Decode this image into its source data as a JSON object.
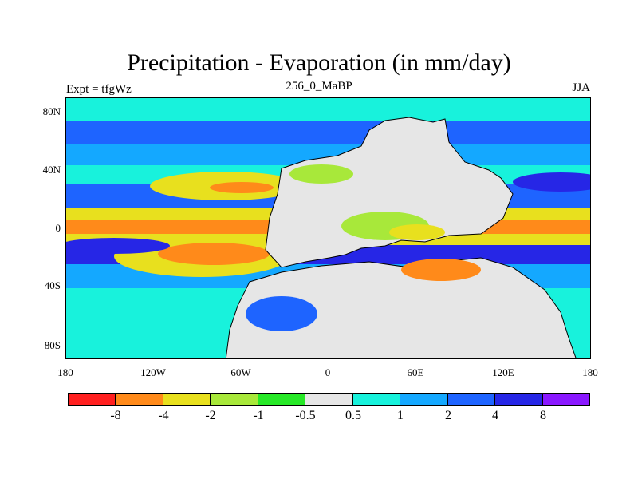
{
  "chart_data": {
    "type": "heatmap",
    "title": "Precipitation - Evaporation (in mm/day)",
    "subtitle": "256_0_MaBP",
    "left_label": "Expt = tfgWz",
    "right_label": "JJA",
    "x_ticks": [
      "180",
      "120W",
      "60W",
      "0",
      "60E",
      "120E",
      "180"
    ],
    "x_tick_values": [
      -180,
      -120,
      -60,
      0,
      60,
      120,
      180
    ],
    "y_ticks": [
      "80N",
      "40N",
      "0",
      "40S",
      "80S"
    ],
    "y_tick_values": [
      80,
      40,
      0,
      -40,
      -80
    ],
    "xlim": [
      -180,
      180
    ],
    "ylim": [
      -90,
      90
    ],
    "colorbar": {
      "colors": [
        "#ff1f1f",
        "#ff8a1a",
        "#e8e01e",
        "#a8e83a",
        "#27e827",
        "#e6e6e6",
        "#18f2dc",
        "#14a8ff",
        "#1e64ff",
        "#2626e6",
        "#8a18ff"
      ],
      "labels": [
        "-8",
        "-4",
        "-2",
        "-1",
        "-0.5",
        "0.5",
        "1",
        "2",
        "4",
        "8"
      ]
    }
  }
}
